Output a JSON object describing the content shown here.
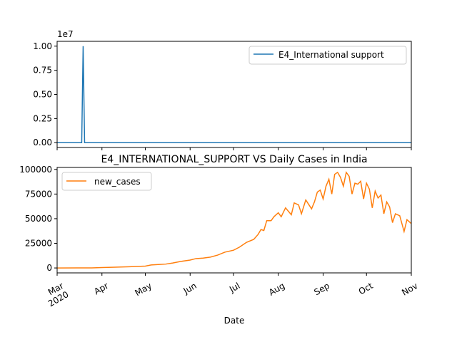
{
  "chart_data": [
    {
      "type": "line",
      "title": "",
      "xlabel": "",
      "ylabel": "",
      "y_scale_label": "1e7",
      "ylim": [
        -0.05,
        1.05
      ],
      "yticks": [
        0.0,
        0.25,
        0.5,
        0.75,
        1.0
      ],
      "ytick_labels": [
        "0.00",
        "0.25",
        "0.50",
        "0.75",
        "1.00"
      ],
      "legend": "top-right",
      "grid": false,
      "color": "#1f77b4",
      "series": [
        {
          "name": "E4_International support",
          "points": [
            [
              "2020-03-01",
              0
            ],
            [
              "2020-03-18",
              0
            ],
            [
              "2020-03-19",
              1.0
            ],
            [
              "2020-03-20",
              0
            ],
            [
              "2020-11-01",
              0
            ]
          ]
        }
      ]
    },
    {
      "type": "line",
      "title": "E4_INTERNATIONAL_SUPPORT VS Daily Cases in India",
      "xlabel": "Date",
      "ylabel": "",
      "ylim": [
        -5000,
        102000
      ],
      "yticks": [
        0,
        25000,
        50000,
        75000,
        100000
      ],
      "legend": "top-left",
      "grid": false,
      "color": "#ff7f0e",
      "x_ticks": [
        "2020-03-01",
        "2020-04-01",
        "2020-05-01",
        "2020-06-01",
        "2020-07-01",
        "2020-08-01",
        "2020-09-01",
        "2020-10-01",
        "2020-11-01"
      ],
      "x_tick_labels": [
        "Mar\n2020",
        "Apr",
        "May",
        "Jun",
        "Jul",
        "Aug",
        "Sep",
        "Oct",
        "Nov"
      ],
      "series": [
        {
          "name": "new_cases",
          "points": [
            [
              "2020-03-01",
              0
            ],
            [
              "2020-03-15",
              15
            ],
            [
              "2020-03-25",
              100
            ],
            [
              "2020-04-01",
              400
            ],
            [
              "2020-04-10",
              800
            ],
            [
              "2020-04-20",
              1200
            ],
            [
              "2020-05-01",
              1900
            ],
            [
              "2020-05-05",
              3000
            ],
            [
              "2020-05-10",
              3500
            ],
            [
              "2020-05-15",
              3900
            ],
            [
              "2020-05-20",
              5000
            ],
            [
              "2020-05-25",
              6500
            ],
            [
              "2020-06-01",
              8000
            ],
            [
              "2020-06-05",
              9500
            ],
            [
              "2020-06-10",
              10000
            ],
            [
              "2020-06-15",
              11000
            ],
            [
              "2020-06-20",
              13000
            ],
            [
              "2020-06-25",
              16000
            ],
            [
              "2020-07-01",
              18000
            ],
            [
              "2020-07-05",
              21000
            ],
            [
              "2020-07-10",
              26000
            ],
            [
              "2020-07-15",
              29000
            ],
            [
              "2020-07-18",
              34000
            ],
            [
              "2020-07-20",
              39000
            ],
            [
              "2020-07-22",
              38000
            ],
            [
              "2020-07-24",
              48000
            ],
            [
              "2020-07-27",
              48000
            ],
            [
              "2020-07-29",
              52000
            ],
            [
              "2020-08-01",
              56000
            ],
            [
              "2020-08-03",
              52000
            ],
            [
              "2020-08-06",
              61000
            ],
            [
              "2020-08-10",
              54000
            ],
            [
              "2020-08-12",
              66000
            ],
            [
              "2020-08-15",
              64000
            ],
            [
              "2020-08-17",
              55000
            ],
            [
              "2020-08-20",
              69000
            ],
            [
              "2020-08-24",
              60000
            ],
            [
              "2020-08-26",
              67000
            ],
            [
              "2020-08-28",
              77000
            ],
            [
              "2020-08-30",
              79000
            ],
            [
              "2020-09-01",
              70000
            ],
            [
              "2020-09-03",
              83000
            ],
            [
              "2020-09-05",
              90000
            ],
            [
              "2020-09-07",
              75000
            ],
            [
              "2020-09-09",
              95000
            ],
            [
              "2020-09-11",
              97000
            ],
            [
              "2020-09-13",
              92000
            ],
            [
              "2020-09-15",
              83000
            ],
            [
              "2020-09-17",
              97000
            ],
            [
              "2020-09-19",
              93000
            ],
            [
              "2020-09-21",
              75000
            ],
            [
              "2020-09-23",
              86000
            ],
            [
              "2020-09-25",
              85000
            ],
            [
              "2020-09-27",
              88000
            ],
            [
              "2020-09-29",
              70000
            ],
            [
              "2020-10-01",
              86000
            ],
            [
              "2020-10-03",
              80000
            ],
            [
              "2020-10-05",
              61000
            ],
            [
              "2020-10-07",
              78000
            ],
            [
              "2020-10-09",
              71000
            ],
            [
              "2020-10-11",
              74000
            ],
            [
              "2020-10-13",
              55000
            ],
            [
              "2020-10-15",
              67000
            ],
            [
              "2020-10-17",
              62000
            ],
            [
              "2020-10-19",
              46000
            ],
            [
              "2020-10-21",
              55000
            ],
            [
              "2020-10-24",
              53000
            ],
            [
              "2020-10-27",
              37000
            ],
            [
              "2020-10-29",
              49000
            ],
            [
              "2020-11-01",
              45000
            ]
          ]
        }
      ]
    }
  ]
}
